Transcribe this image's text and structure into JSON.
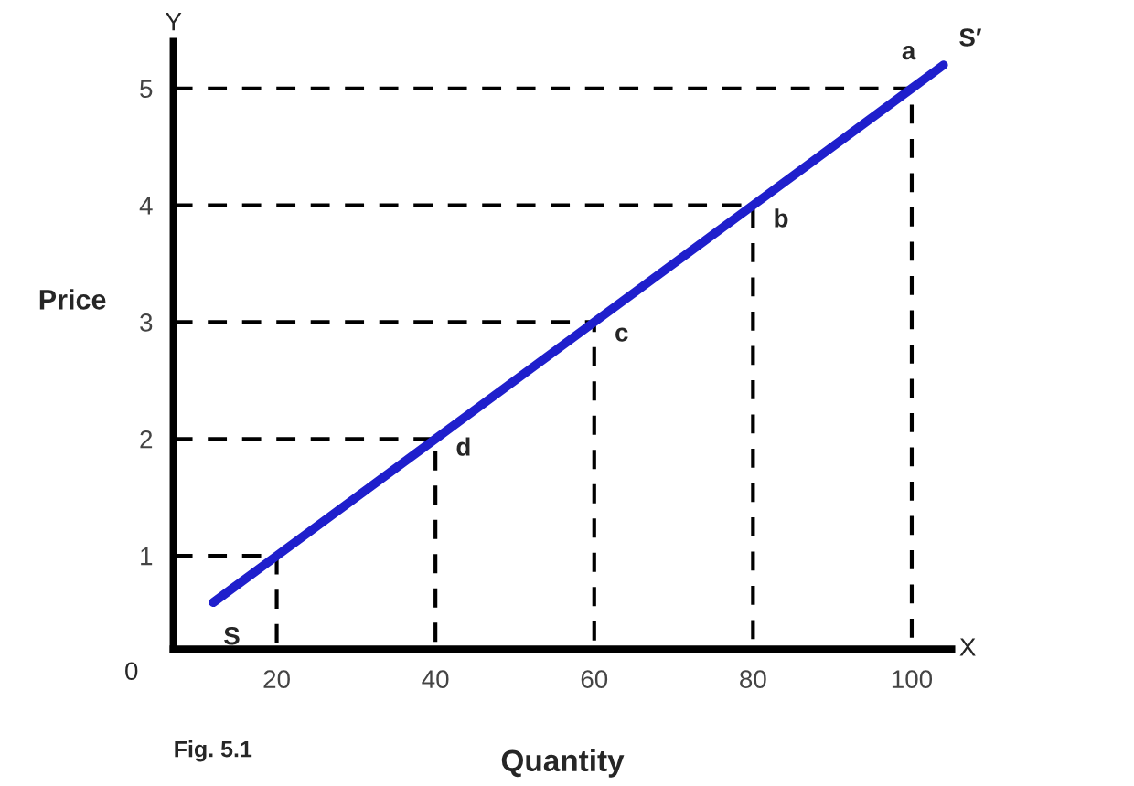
{
  "chart_data": {
    "type": "line",
    "xlabel": "Quantity",
    "ylabel": "Price",
    "xlim": [
      7,
      105
    ],
    "ylim": [
      0.2,
      5.4
    ],
    "xticks": [
      20,
      40,
      60,
      80,
      100
    ],
    "yticks": [
      1,
      2,
      3,
      4,
      5
    ],
    "grid": false,
    "legend": false,
    "marker": "none",
    "series": [
      {
        "color": "#1f1fcc",
        "x": [
          12,
          20,
          40,
          60,
          80,
          100,
          104
        ],
        "values": [
          0.6,
          1,
          2,
          3,
          4,
          5,
          5.2
        ],
        "line_style": "solid"
      },
      {
        "color": "#000000",
        "x": [
          7,
          20,
          20
        ],
        "values": [
          1,
          1,
          0.2
        ],
        "line_style": "dashed"
      },
      {
        "color": "#000000",
        "x": [
          7,
          40,
          40
        ],
        "values": [
          2,
          2,
          0.2
        ],
        "line_style": "dashed"
      },
      {
        "color": "#000000",
        "x": [
          7,
          60,
          60
        ],
        "values": [
          3,
          3,
          0.2
        ],
        "line_style": "dashed"
      },
      {
        "color": "#000000",
        "x": [
          7,
          80,
          80
        ],
        "values": [
          4,
          4,
          0.2
        ],
        "line_style": "dashed"
      },
      {
        "color": "#000000",
        "x": [
          7,
          100,
          100
        ],
        "values": [
          5,
          5,
          0.2
        ],
        "line_style": "dashed"
      }
    ],
    "annotations": [
      {
        "text": "a",
        "x": 100,
        "y": 5
      },
      {
        "text": "b",
        "x": 80,
        "y": 4
      },
      {
        "text": "c",
        "x": 60,
        "y": 3
      },
      {
        "text": "d",
        "x": 40,
        "y": 2
      },
      {
        "text": "S",
        "x": 12,
        "y": 0.6
      },
      {
        "text": "S′",
        "x": 104,
        "y": 5.2
      },
      "Y",
      "X",
      "0",
      "Fig. 5.1"
    ]
  }
}
